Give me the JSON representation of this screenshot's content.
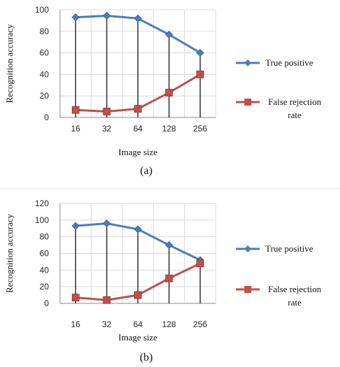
{
  "chart_data": [
    {
      "type": "line",
      "caption": "(a)",
      "xlabel": "Image size",
      "ylabel": "Recognition accuracy",
      "categories": [
        "16",
        "32",
        "64",
        "128",
        "256"
      ],
      "ylim": [
        0,
        100
      ],
      "yticks": [
        0,
        20,
        40,
        60,
        80,
        100
      ],
      "grid": true,
      "legend": "right",
      "series": [
        {
          "name": "True positive",
          "color": "#4a7cc1",
          "marker": "diamond",
          "values": [
            93,
            94.5,
            92,
            77,
            60
          ]
        },
        {
          "name": "False rejection rate",
          "name_lines": [
            "False rejection",
            "rate"
          ],
          "color": "#c0504d",
          "marker": "square",
          "values": [
            7,
            5.5,
            8,
            23,
            40
          ]
        }
      ]
    },
    {
      "type": "line",
      "caption": "(b)",
      "xlabel": "Image size",
      "ylabel": "Recognition accuracy",
      "categories": [
        "16",
        "32",
        "64",
        "128",
        "256"
      ],
      "ylim": [
        0,
        120
      ],
      "yticks": [
        0,
        20,
        40,
        60,
        80,
        100,
        120
      ],
      "grid": true,
      "legend": "right",
      "series": [
        {
          "name": "True positive",
          "color": "#4a7cc1",
          "marker": "diamond",
          "values": [
            93,
            96,
            89,
            70,
            52
          ]
        },
        {
          "name": "False rejection rate",
          "name_lines": [
            "False rejection",
            "rate"
          ],
          "color": "#c0504d",
          "marker": "square",
          "values": [
            7,
            4,
            10,
            30,
            48
          ]
        }
      ]
    }
  ]
}
